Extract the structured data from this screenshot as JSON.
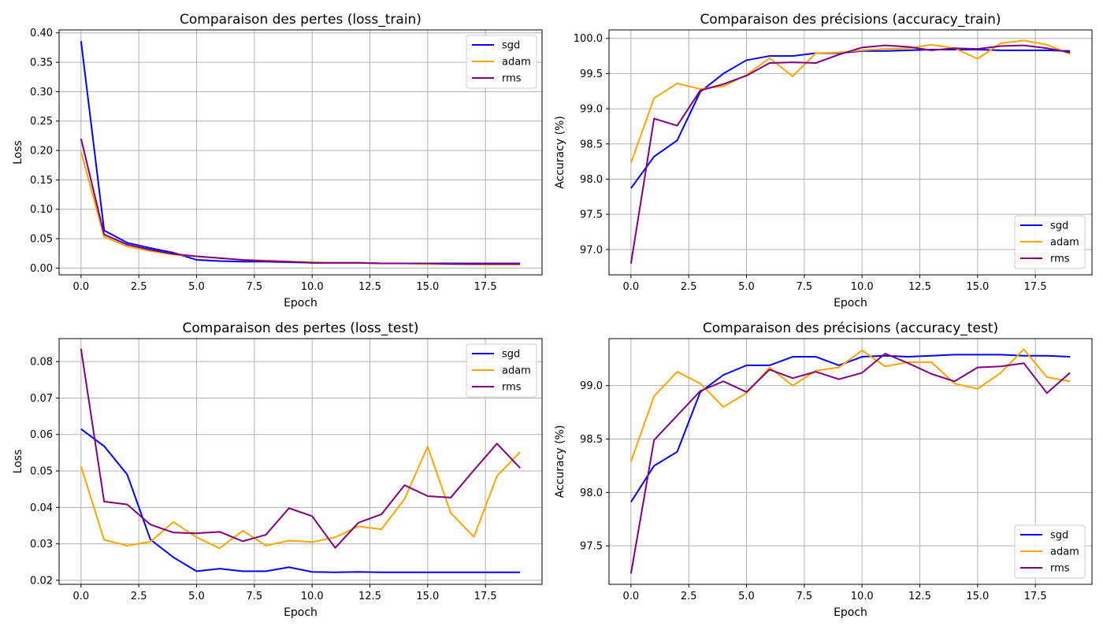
{
  "chart_data": [
    {
      "type": "line",
      "title": "Comparaison des pertes (loss_train)",
      "xlabel": "Epoch",
      "ylabel": "Loss",
      "xlim": [
        -0.95,
        19.95
      ],
      "ylim": [
        -0.0115,
        0.405
      ],
      "xticks": [
        0,
        2.5,
        5,
        7.5,
        10,
        12.5,
        15,
        17.5
      ],
      "xticklabels": [
        "0.0",
        "2.5",
        "5.0",
        "7.5",
        "10.0",
        "12.5",
        "15.0",
        "17.5"
      ],
      "yticks": [
        0,
        0.05,
        0.1,
        0.15,
        0.2,
        0.25,
        0.3,
        0.35,
        0.4
      ],
      "yticklabels": [
        "0.00",
        "0.05",
        "0.10",
        "0.15",
        "0.20",
        "0.25",
        "0.30",
        "0.35",
        "0.40"
      ],
      "grid": true,
      "legend_position": "upper-right",
      "x": [
        0,
        1,
        2,
        3,
        4,
        5,
        6,
        7,
        8,
        9,
        10,
        11,
        12,
        13,
        14,
        15,
        16,
        17,
        18,
        19
      ],
      "series": [
        {
          "name": "sgd",
          "color": "#0000ff",
          "values": [
            0.386,
            0.064,
            0.043,
            0.034,
            0.026,
            0.014,
            0.012,
            0.011,
            0.011,
            0.01,
            0.009,
            0.009,
            0.009,
            0.008,
            0.008,
            0.008,
            0.008,
            0.008,
            0.008,
            0.008
          ]
        },
        {
          "name": "adam",
          "color": "#ffa500",
          "values": [
            0.198,
            0.053,
            0.037,
            0.029,
            0.023,
            0.02,
            0.017,
            0.014,
            0.013,
            0.011,
            0.01,
            0.009,
            0.009,
            0.008,
            0.008,
            0.007,
            0.007,
            0.006,
            0.006,
            0.006
          ]
        },
        {
          "name": "rms",
          "color": "#800080",
          "values": [
            0.22,
            0.057,
            0.04,
            0.031,
            0.024,
            0.02,
            0.017,
            0.014,
            0.012,
            0.011,
            0.009,
            0.009,
            0.009,
            0.008,
            0.008,
            0.008,
            0.007,
            0.007,
            0.007,
            0.007
          ]
        }
      ]
    },
    {
      "type": "line",
      "title": "Comparaison des précisions (accuracy_train)",
      "xlabel": "Epoch",
      "ylabel": "Accuracy (%)",
      "xlim": [
        -0.95,
        19.95
      ],
      "ylim": [
        96.64,
        100.12
      ],
      "xticks": [
        0,
        2.5,
        5,
        7.5,
        10,
        12.5,
        15,
        17.5
      ],
      "xticklabels": [
        "0.0",
        "2.5",
        "5.0",
        "7.5",
        "10.0",
        "12.5",
        "15.0",
        "17.5"
      ],
      "yticks": [
        97.0,
        97.5,
        98.0,
        98.5,
        99.0,
        99.5,
        100.0
      ],
      "yticklabels": [
        "97.0",
        "97.5",
        "98.0",
        "98.5",
        "99.0",
        "99.5",
        "100.0"
      ],
      "grid": true,
      "legend_position": "lower-right",
      "x": [
        0,
        1,
        2,
        3,
        4,
        5,
        6,
        7,
        8,
        9,
        10,
        11,
        12,
        13,
        14,
        15,
        16,
        17,
        18,
        19
      ],
      "series": [
        {
          "name": "sgd",
          "color": "#0000ff",
          "values": [
            97.87,
            98.32,
            98.55,
            99.24,
            99.5,
            99.69,
            99.75,
            99.75,
            99.79,
            99.79,
            99.82,
            99.82,
            99.83,
            99.84,
            99.84,
            99.84,
            99.83,
            99.83,
            99.83,
            99.82
          ]
        },
        {
          "name": "adam",
          "color": "#ffa500",
          "values": [
            98.23,
            99.15,
            99.36,
            99.28,
            99.32,
            99.48,
            99.72,
            99.46,
            99.79,
            99.8,
            99.83,
            99.85,
            99.86,
            99.91,
            99.86,
            99.71,
            99.93,
            99.97,
            99.91,
            99.78
          ]
        },
        {
          "name": "rms",
          "color": "#800080",
          "values": [
            96.8,
            98.86,
            98.76,
            99.26,
            99.35,
            99.47,
            99.65,
            99.66,
            99.65,
            99.77,
            99.87,
            99.9,
            99.88,
            99.83,
            99.86,
            99.85,
            99.89,
            99.9,
            99.86,
            99.8
          ]
        }
      ]
    },
    {
      "type": "line",
      "title": "Comparaison des pertes (loss_test)",
      "xlabel": "Epoch",
      "ylabel": "Loss",
      "xlim": [
        -0.95,
        19.95
      ],
      "ylim": [
        0.0189,
        0.0863
      ],
      "xticks": [
        0,
        2.5,
        5,
        7.5,
        10,
        12.5,
        15,
        17.5
      ],
      "xticklabels": [
        "0.0",
        "2.5",
        "5.0",
        "7.5",
        "10.0",
        "12.5",
        "15.0",
        "17.5"
      ],
      "yticks": [
        0.02,
        0.03,
        0.04,
        0.05,
        0.06,
        0.07,
        0.08
      ],
      "yticklabels": [
        "0.02",
        "0.03",
        "0.04",
        "0.05",
        "0.06",
        "0.07",
        "0.08"
      ],
      "grid": true,
      "legend_position": "upper-right",
      "x": [
        0,
        1,
        2,
        3,
        4,
        5,
        6,
        7,
        8,
        9,
        10,
        11,
        12,
        13,
        14,
        15,
        16,
        17,
        18,
        19
      ],
      "series": [
        {
          "name": "sgd",
          "color": "#0000ff",
          "values": [
            0.0615,
            0.0568,
            0.049,
            0.0312,
            0.0263,
            0.0225,
            0.0232,
            0.0225,
            0.0225,
            0.0236,
            0.0223,
            0.0222,
            0.0223,
            0.0222,
            0.0222,
            0.0222,
            0.0222,
            0.0222,
            0.0222,
            0.0222
          ]
        },
        {
          "name": "adam",
          "color": "#ffa500",
          "values": [
            0.0513,
            0.0311,
            0.0295,
            0.0306,
            0.036,
            0.0318,
            0.0288,
            0.0336,
            0.0295,
            0.0309,
            0.0305,
            0.0318,
            0.0348,
            0.034,
            0.0423,
            0.0567,
            0.0385,
            0.0319,
            0.0486,
            0.0552
          ]
        },
        {
          "name": "rms",
          "color": "#800080",
          "values": [
            0.0835,
            0.0416,
            0.0408,
            0.0353,
            0.0331,
            0.0329,
            0.0333,
            0.0307,
            0.0325,
            0.0398,
            0.0376,
            0.0289,
            0.0358,
            0.0381,
            0.0461,
            0.0431,
            0.0427,
            0.0502,
            0.0575,
            0.0508
          ]
        }
      ]
    },
    {
      "type": "line",
      "title": "Comparaison des précisions (accuracy_test)",
      "xlabel": "Epoch",
      "ylabel": "Accuracy (%)",
      "xlim": [
        -0.95,
        19.95
      ],
      "ylim": [
        97.14,
        99.44
      ],
      "xticks": [
        0,
        2.5,
        5,
        7.5,
        10,
        12.5,
        15,
        17.5
      ],
      "xticklabels": [
        "0.0",
        "2.5",
        "5.0",
        "7.5",
        "10.0",
        "12.5",
        "15.0",
        "17.5"
      ],
      "yticks": [
        97.5,
        98.0,
        98.5,
        99.0
      ],
      "yticklabels": [
        "97.5",
        "98.0",
        "98.5",
        "99.0"
      ],
      "grid": true,
      "legend_position": "lower-right",
      "x": [
        0,
        1,
        2,
        3,
        4,
        5,
        6,
        7,
        8,
        9,
        10,
        11,
        12,
        13,
        14,
        15,
        16,
        17,
        18,
        19
      ],
      "series": [
        {
          "name": "sgd",
          "color": "#0000ff",
          "values": [
            97.91,
            98.25,
            98.38,
            98.94,
            99.1,
            99.19,
            99.19,
            99.27,
            99.27,
            99.19,
            99.27,
            99.28,
            99.27,
            99.28,
            99.29,
            99.29,
            99.29,
            99.28,
            99.28,
            99.27
          ]
        },
        {
          "name": "adam",
          "color": "#ffa500",
          "values": [
            98.29,
            98.9,
            99.13,
            99.02,
            98.8,
            98.93,
            99.17,
            99.0,
            99.14,
            99.17,
            99.33,
            99.18,
            99.22,
            99.22,
            99.02,
            98.97,
            99.12,
            99.34,
            99.08,
            99.04
          ]
        },
        {
          "name": "rms",
          "color": "#800080",
          "values": [
            97.24,
            98.49,
            98.72,
            98.95,
            99.04,
            98.94,
            99.15,
            99.07,
            99.13,
            99.06,
            99.12,
            99.3,
            99.21,
            99.11,
            99.04,
            99.17,
            99.18,
            99.21,
            98.93,
            99.12
          ]
        }
      ]
    }
  ]
}
